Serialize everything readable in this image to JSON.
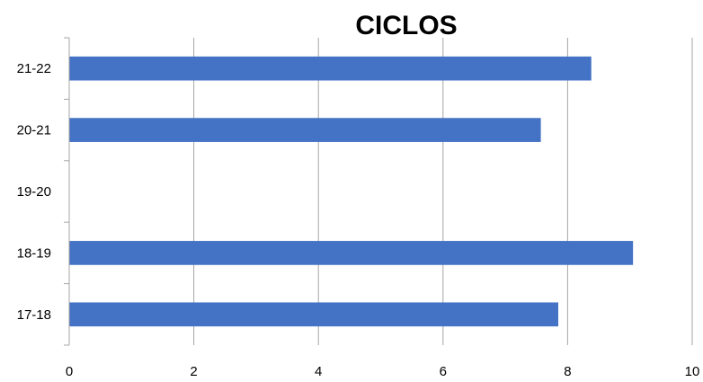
{
  "chart_data": {
    "type": "bar",
    "orientation": "horizontal",
    "title": "CICLOS",
    "xlabel": "",
    "ylabel": "",
    "categories": [
      "17-18",
      "18-19",
      "19-20",
      "20-21",
      "21-22"
    ],
    "values": [
      7.85,
      9.05,
      0,
      7.57,
      8.38
    ],
    "xlim": [
      0,
      10
    ],
    "xticks": [
      "0",
      "2",
      "4",
      "6",
      "8",
      "10"
    ],
    "grid": true,
    "legend": "none",
    "bar_color": "#4472c4"
  }
}
